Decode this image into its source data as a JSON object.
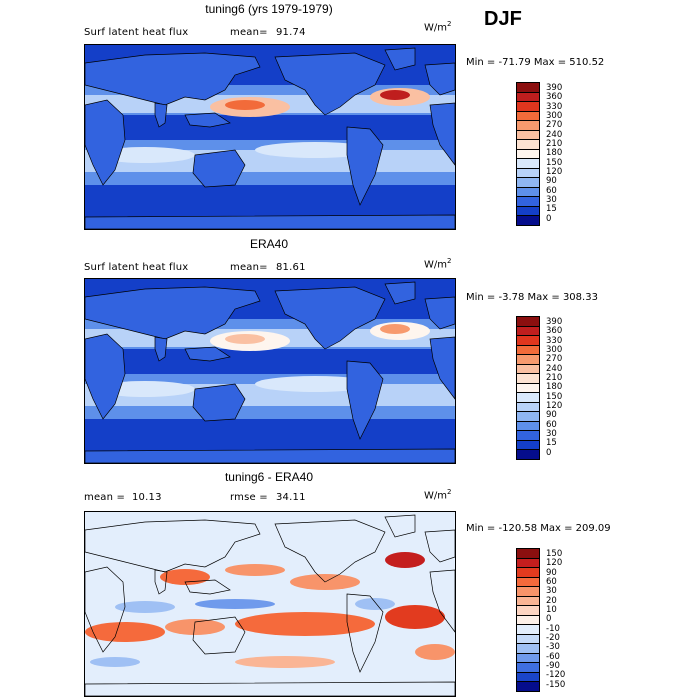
{
  "season": "DJF",
  "panels": [
    {
      "title": "tuning6 (yrs 1979-1979)",
      "variable": "Surf latent heat flux",
      "stat_label": "mean=",
      "stat_value": "91.74",
      "units_base": "W/m",
      "units_exp": "2",
      "minmax": "Min = -71.79  Max = 510.52",
      "colorbar_labels": [
        "390",
        "360",
        "330",
        "300",
        "270",
        "240",
        "210",
        "180",
        "150",
        "120",
        "90",
        "60",
        "30",
        "15",
        "0"
      ],
      "colorbar_colors": [
        "#8b0f0f",
        "#bf1e1e",
        "#e0361e",
        "#f26b3a",
        "#f79a6e",
        "#fac0a2",
        "#fde3d2",
        "#fef5ee",
        "#d9e8fb",
        "#b8d2f8",
        "#8fb6f2",
        "#5e90ea",
        "#3263df",
        "#143fc8",
        "#050d8c"
      ],
      "map_style": "flux"
    },
    {
      "title": "ERA40",
      "variable": "Surf latent heat flux",
      "stat_label": "mean=",
      "stat_value": "81.61",
      "units_base": "W/m",
      "units_exp": "2",
      "minmax": "Min =  -3.78  Max = 308.33",
      "colorbar_labels": [
        "390",
        "360",
        "330",
        "300",
        "270",
        "240",
        "210",
        "180",
        "150",
        "120",
        "90",
        "60",
        "30",
        "15",
        "0"
      ],
      "colorbar_colors": [
        "#8b0f0f",
        "#bf1e1e",
        "#e0361e",
        "#f26b3a",
        "#f79a6e",
        "#fac0a2",
        "#fde3d2",
        "#fef5ee",
        "#d9e8fb",
        "#b8d2f8",
        "#8fb6f2",
        "#5e90ea",
        "#3263df",
        "#143fc8",
        "#050d8c"
      ],
      "map_style": "flux_obs"
    },
    {
      "title": "tuning6 - ERA40",
      "variable": "mean =",
      "stat_label": "",
      "stat_value": "10.13",
      "rmse_label": "rmse =",
      "rmse_value": "34.11",
      "units_base": "W/m",
      "units_exp": "2",
      "minmax": "Min = -120.58  Max = 209.09",
      "colorbar_labels": [
        "150",
        "120",
        "90",
        "60",
        "30",
        "20",
        "10",
        "0",
        "-10",
        "-20",
        "-30",
        "-60",
        "-90",
        "-120",
        "-150"
      ],
      "colorbar_colors": [
        "#8b0f0f",
        "#c41e1e",
        "#e23b1f",
        "#f56a3c",
        "#f8946a",
        "#fab595",
        "#fdd5c2",
        "#fdf0e8",
        "#e3eefc",
        "#c6dbf9",
        "#9fc0f4",
        "#6f9aec",
        "#3f6fe0",
        "#1a45c9",
        "#050d8c"
      ],
      "map_style": "diff"
    }
  ]
}
